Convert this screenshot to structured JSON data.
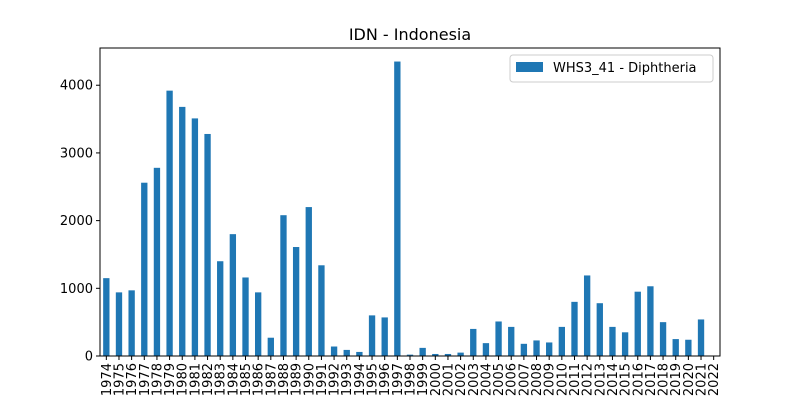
{
  "chart_data": {
    "type": "bar",
    "title": "IDN - Indonesia",
    "xlabel": "",
    "ylabel": "",
    "ylim": [
      0,
      4550
    ],
    "yticks": [
      0,
      1000,
      2000,
      3000,
      4000
    ],
    "grid": false,
    "legend_position": "top-right",
    "categories": [
      "1974",
      "1975",
      "1976",
      "1977",
      "1978",
      "1979",
      "1980",
      "1981",
      "1982",
      "1983",
      "1984",
      "1985",
      "1986",
      "1987",
      "1988",
      "1989",
      "1990",
      "1991",
      "1992",
      "1993",
      "1994",
      "1995",
      "1996",
      "1997",
      "1998",
      "1999",
      "2000",
      "2001",
      "2002",
      "2003",
      "2004",
      "2005",
      "2006",
      "2007",
      "2008",
      "2009",
      "2010",
      "2011",
      "2012",
      "2013",
      "2014",
      "2015",
      "2016",
      "2017",
      "2018",
      "2019",
      "2020",
      "2021",
      "2022"
    ],
    "series": [
      {
        "name": "WHS3_41 - Diphtheria",
        "color": "#1f77b4",
        "values": [
          1150,
          940,
          970,
          2560,
          2780,
          3920,
          3680,
          3510,
          3280,
          1400,
          1800,
          1160,
          940,
          270,
          2080,
          1610,
          2200,
          1340,
          140,
          90,
          60,
          600,
          570,
          4350,
          20,
          120,
          30,
          30,
          50,
          400,
          190,
          510,
          430,
          180,
          230,
          200,
          430,
          800,
          1190,
          780,
          430,
          350,
          950,
          1030,
          500,
          250,
          240,
          540,
          0
        ]
      }
    ]
  }
}
